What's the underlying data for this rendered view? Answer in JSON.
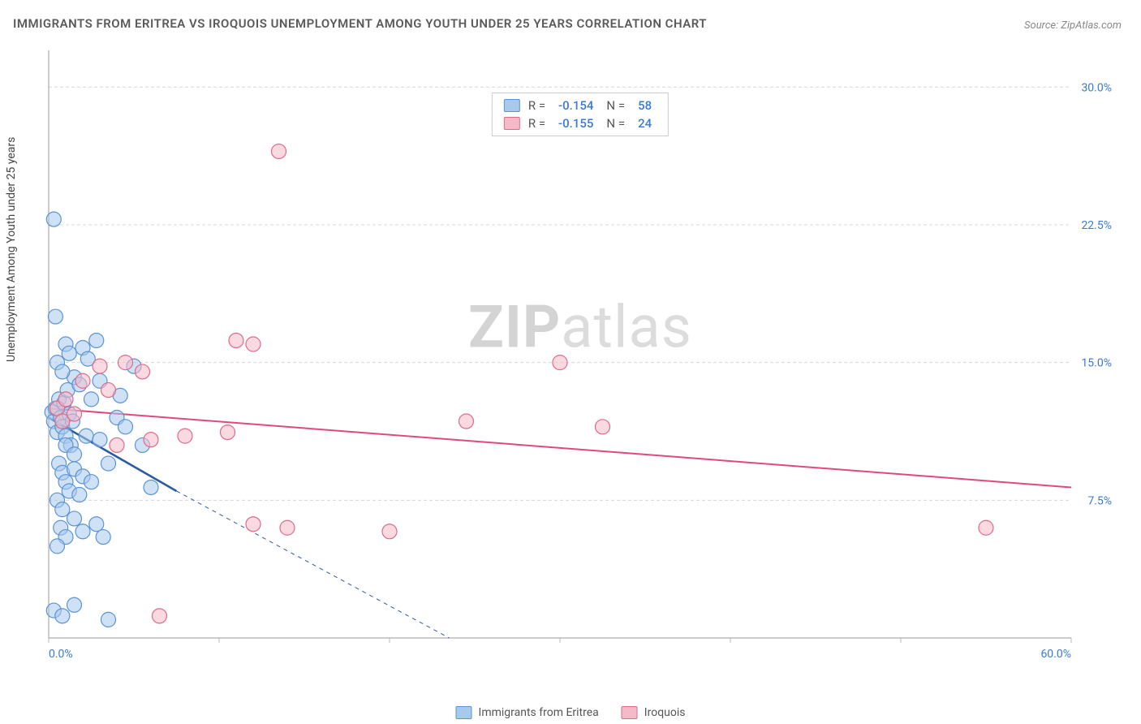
{
  "title": "IMMIGRANTS FROM ERITREA VS IROQUOIS UNEMPLOYMENT AMONG YOUTH UNDER 25 YEARS CORRELATION CHART",
  "source": "Source: ZipAtlas.com",
  "y_axis_label": "Unemployment Among Youth under 25 years",
  "watermark_bold": "ZIP",
  "watermark_rest": "atlas",
  "chart": {
    "type": "scatter",
    "background_color": "#ffffff",
    "grid_color": "#d8d8d8",
    "axis_color": "#999999",
    "tick_color": "#bbbbbb",
    "x_range": [
      0,
      60
    ],
    "y_range": [
      0,
      32
    ],
    "x_ticks": [
      0,
      10,
      20,
      30,
      40,
      50,
      60
    ],
    "x_tick_labels": [
      "0.0%",
      "",
      "",
      "",
      "",
      "",
      "60.0%"
    ],
    "y_ticks": [
      7.5,
      15.0,
      22.5,
      30.0
    ],
    "y_tick_labels": [
      "7.5%",
      "15.0%",
      "22.5%",
      "30.0%"
    ],
    "tick_label_color": "#3a7ad6",
    "tick_label_fontsize": 14,
    "series": [
      {
        "name": "Immigrants from Eritrea",
        "bottom_label": "Immigrants from Eritrea",
        "color_fill": "#a8c8ec",
        "color_stroke": "#5a94d6",
        "marker_size": 9,
        "fill_opacity": 0.55,
        "R": "-0.154",
        "N": "58",
        "trend_line": {
          "x1": 0,
          "y1": 12.0,
          "x2": 7.5,
          "y2": 8.0,
          "solid_end_x": 7.5,
          "dash_to_x": 23.5,
          "dash_to_y": 0,
          "color": "#2c5aa0",
          "width": 2.5
        },
        "points": [
          [
            0.2,
            12.3
          ],
          [
            0.3,
            11.8
          ],
          [
            0.4,
            12.5
          ],
          [
            0.5,
            11.2
          ],
          [
            0.6,
            13.0
          ],
          [
            0.7,
            12.0
          ],
          [
            0.8,
            11.5
          ],
          [
            0.9,
            12.8
          ],
          [
            1.0,
            11.0
          ],
          [
            1.1,
            13.5
          ],
          [
            1.2,
            12.2
          ],
          [
            1.3,
            10.5
          ],
          [
            1.4,
            11.8
          ],
          [
            1.5,
            14.2
          ],
          [
            0.5,
            15.0
          ],
          [
            0.8,
            14.5
          ],
          [
            1.0,
            16.0
          ],
          [
            1.2,
            15.5
          ],
          [
            2.0,
            15.8
          ],
          [
            2.3,
            15.2
          ],
          [
            2.8,
            16.2
          ],
          [
            0.4,
            17.5
          ],
          [
            0.3,
            22.8
          ],
          [
            0.6,
            9.5
          ],
          [
            0.8,
            9.0
          ],
          [
            1.0,
            8.5
          ],
          [
            1.5,
            9.2
          ],
          [
            2.0,
            8.8
          ],
          [
            0.5,
            7.5
          ],
          [
            0.8,
            7.0
          ],
          [
            1.2,
            8.0
          ],
          [
            1.8,
            7.8
          ],
          [
            2.5,
            8.5
          ],
          [
            0.7,
            6.0
          ],
          [
            1.0,
            5.5
          ],
          [
            1.5,
            6.5
          ],
          [
            2.0,
            5.8
          ],
          [
            2.8,
            6.2
          ],
          [
            3.2,
            5.5
          ],
          [
            0.5,
            5.0
          ],
          [
            1.0,
            10.5
          ],
          [
            1.5,
            10.0
          ],
          [
            2.2,
            11.0
          ],
          [
            3.0,
            10.8
          ],
          [
            3.5,
            9.5
          ],
          [
            4.0,
            12.0
          ],
          [
            4.5,
            11.5
          ],
          [
            5.0,
            14.8
          ],
          [
            1.8,
            13.8
          ],
          [
            2.5,
            13.0
          ],
          [
            3.0,
            14.0
          ],
          [
            0.3,
            1.5
          ],
          [
            0.8,
            1.2
          ],
          [
            1.5,
            1.8
          ],
          [
            3.5,
            1.0
          ],
          [
            4.2,
            13.2
          ],
          [
            5.5,
            10.5
          ],
          [
            6.0,
            8.2
          ]
        ]
      },
      {
        "name": "Iroquois",
        "bottom_label": "Iroquois",
        "color_fill": "#f5b9c8",
        "color_stroke": "#e06a8a",
        "marker_size": 9,
        "fill_opacity": 0.55,
        "R": "-0.155",
        "N": "24",
        "trend_line": {
          "x1": 0,
          "y1": 12.5,
          "x2": 60,
          "y2": 8.2,
          "color": "#e04a7a",
          "width": 2
        },
        "points": [
          [
            0.5,
            12.5
          ],
          [
            0.8,
            11.8
          ],
          [
            1.0,
            13.0
          ],
          [
            1.5,
            12.2
          ],
          [
            2.0,
            14.0
          ],
          [
            3.0,
            14.8
          ],
          [
            3.5,
            13.5
          ],
          [
            4.5,
            15.0
          ],
          [
            5.5,
            14.5
          ],
          [
            4.0,
            10.5
          ],
          [
            6.0,
            10.8
          ],
          [
            8.0,
            11.0
          ],
          [
            11.0,
            16.2
          ],
          [
            12.0,
            16.0
          ],
          [
            10.5,
            11.2
          ],
          [
            13.5,
            26.5
          ],
          [
            12.0,
            6.2
          ],
          [
            14.0,
            6.0
          ],
          [
            20.0,
            5.8
          ],
          [
            24.5,
            11.8
          ],
          [
            30.0,
            15.0
          ],
          [
            32.5,
            11.5
          ],
          [
            55.0,
            6.0
          ],
          [
            6.5,
            1.2
          ]
        ]
      }
    ]
  },
  "legend_prefix_R": "R =",
  "legend_prefix_N": "N ="
}
